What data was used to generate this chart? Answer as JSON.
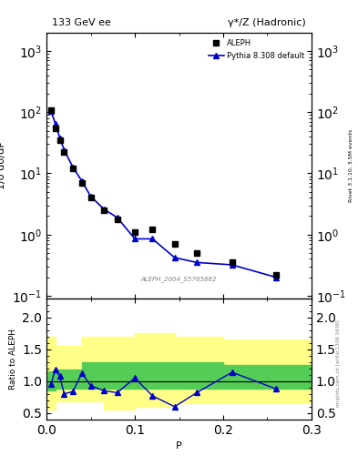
{
  "title_left": "133 GeV ee",
  "title_right": "γ*/Z (Hadronic)",
  "right_label": "Rivet 3.1.10, 3.5M events",
  "arxiv_label": "mcplots.cern.ch [arXiv:1306.3436]",
  "watermark": "ALEPH_2004_S5765862",
  "ylabel_main": "1/σ dσ/dP",
  "ylabel_ratio": "Ratio to ALEPH",
  "xlabel": "P",
  "xlim": [
    0,
    0.3
  ],
  "ylim_main": [
    0.09,
    2000
  ],
  "ylim_ratio": [
    0.4,
    2.3
  ],
  "aleph_x": [
    0.005,
    0.01,
    0.015,
    0.02,
    0.03,
    0.04,
    0.05,
    0.065,
    0.08,
    0.1,
    0.12,
    0.145,
    0.17,
    0.21,
    0.26
  ],
  "aleph_y": [
    110,
    55,
    35,
    22,
    12,
    7.0,
    4.0,
    2.5,
    1.8,
    1.1,
    1.2,
    0.7,
    0.5,
    0.35,
    0.22
  ],
  "pythia_x": [
    0.005,
    0.01,
    0.015,
    0.02,
    0.03,
    0.04,
    0.05,
    0.065,
    0.08,
    0.1,
    0.12,
    0.145,
    0.17,
    0.21,
    0.26
  ],
  "pythia_y": [
    105,
    65,
    38,
    24,
    12.5,
    7.5,
    4.2,
    2.6,
    1.9,
    0.85,
    0.85,
    0.42,
    0.35,
    0.32,
    0.2
  ],
  "ratio_x": [
    0.005,
    0.01,
    0.015,
    0.02,
    0.03,
    0.04,
    0.05,
    0.065,
    0.08,
    0.1,
    0.12,
    0.145,
    0.17,
    0.21,
    0.26
  ],
  "ratio_y": [
    0.955,
    1.18,
    1.08,
    0.8,
    0.84,
    1.13,
    0.93,
    0.85,
    0.82,
    1.05,
    0.77,
    0.6,
    0.82,
    1.14,
    0.88
  ],
  "green_band_x": [
    0.0,
    0.005,
    0.01,
    0.02,
    0.04,
    0.065,
    0.1,
    0.145,
    0.2,
    0.3
  ],
  "green_band_lo": [
    0.85,
    0.85,
    0.88,
    0.88,
    0.88,
    0.88,
    0.88,
    0.88,
    0.88,
    0.88
  ],
  "green_band_hi": [
    1.15,
    1.15,
    1.18,
    1.18,
    1.3,
    1.3,
    1.3,
    1.3,
    1.25,
    1.25
  ],
  "yellow_band_x": [
    0.0,
    0.005,
    0.01,
    0.02,
    0.04,
    0.065,
    0.1,
    0.145,
    0.2,
    0.3
  ],
  "yellow_band_lo": [
    0.55,
    0.55,
    0.68,
    0.68,
    0.68,
    0.55,
    0.6,
    0.65,
    0.65,
    0.65
  ],
  "yellow_band_hi": [
    1.7,
    1.7,
    1.55,
    1.55,
    1.7,
    1.7,
    1.75,
    1.7,
    1.65,
    1.65
  ],
  "line_color": "#0000cc",
  "marker_color": "#000000",
  "bg_color": "#ffffff",
  "yellow_color": "#ffff88",
  "green_color": "#55cc55"
}
